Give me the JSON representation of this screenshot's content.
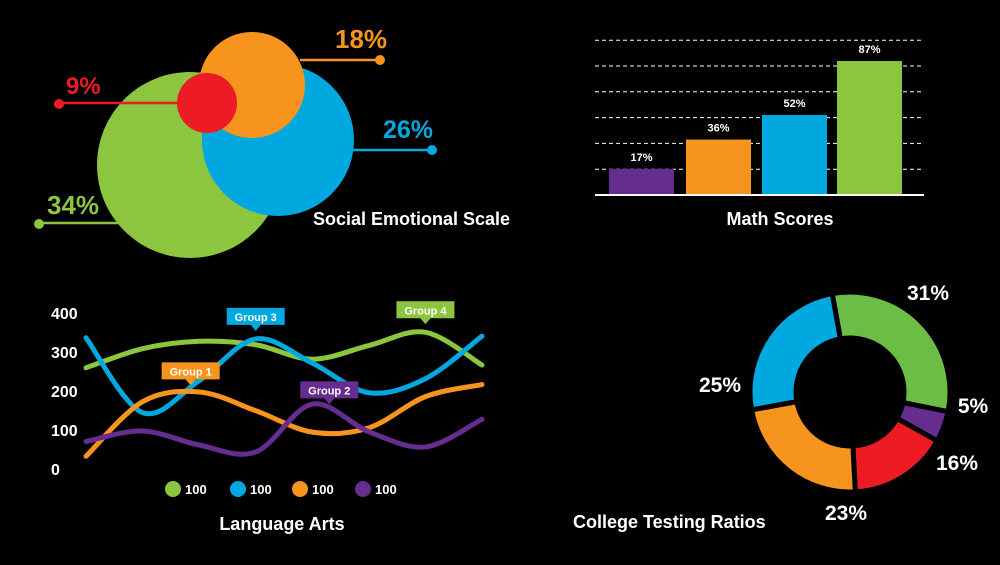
{
  "colors": {
    "green": "#8cc63f",
    "blue": "#00a8e0",
    "orange": "#f7941d",
    "red": "#ed1c24",
    "purple": "#662d91",
    "donut_green": "#6cbd45",
    "white": "#ffffff",
    "background": "#000000"
  },
  "chart_data": [
    {
      "type": "bubble",
      "title": "Social Emotional Scale",
      "series": [
        {
          "label": "34%",
          "value": 34,
          "color": "#8cc63f"
        },
        {
          "label": "26%",
          "value": 26,
          "color": "#00a8e0"
        },
        {
          "label": "18%",
          "value": 18,
          "color": "#f7941d"
        },
        {
          "label": "9%",
          "value": 9,
          "color": "#ed1c24"
        }
      ]
    },
    {
      "type": "bar",
      "title": "Math Scores",
      "values": [
        17,
        36,
        52,
        87
      ],
      "labels": [
        "17%",
        "36%",
        "52%",
        "87%"
      ],
      "colors": [
        "#662d91",
        "#f7941d",
        "#00a8e0",
        "#8cc63f"
      ],
      "ylim": [
        0,
        100
      ],
      "grid": true
    },
    {
      "type": "line",
      "title": "Language Arts",
      "yticks": [
        "400",
        "300",
        "200",
        "100",
        "0"
      ],
      "ylim": [
        0,
        400
      ],
      "series": [
        {
          "name": "Group 4",
          "color": "#8cc63f",
          "x": [
            0,
            1,
            2,
            3,
            4,
            5,
            6,
            7
          ],
          "values": [
            257,
            306,
            325,
            316,
            279,
            314,
            348,
            264
          ]
        },
        {
          "name": "Group 3",
          "color": "#00a8e0",
          "x": [
            0,
            1,
            2,
            3,
            4,
            5,
            6,
            7
          ],
          "values": [
            334,
            142,
            224,
            331,
            269,
            193,
            229,
            338
          ]
        },
        {
          "name": "Group 1",
          "color": "#f7941d",
          "x": [
            0,
            1,
            2,
            3,
            4,
            5,
            6,
            7
          ],
          "values": [
            30,
            170,
            195,
            147,
            92,
            103,
            183,
            214
          ]
        },
        {
          "name": "Group 2",
          "color": "#662d91",
          "x": [
            0,
            1,
            2,
            3,
            4,
            5,
            6,
            7
          ],
          "values": [
            68,
            95,
            59,
            41,
            164,
            93,
            54,
            125
          ]
        }
      ],
      "callouts": [
        {
          "label": "Group 3",
          "series": "Group 3",
          "x": 3
        },
        {
          "label": "Group 4",
          "series": "Group 4",
          "x": 6
        },
        {
          "label": "Group 1",
          "series": "Group 1",
          "x": 1.85
        },
        {
          "label": "Group 2",
          "series": "Group 2",
          "x": 4.3
        }
      ],
      "legend": [
        {
          "text": "100",
          "color": "#8cc63f"
        },
        {
          "text": "100",
          "color": "#00a8e0"
        },
        {
          "text": "100",
          "color": "#f7941d"
        },
        {
          "text": "100",
          "color": "#662d91"
        }
      ]
    },
    {
      "type": "pie",
      "donut": true,
      "title": "College Testing Ratios",
      "slices": [
        {
          "label": "31%",
          "value": 31,
          "color": "#6cbd45"
        },
        {
          "label": "5%",
          "value": 5,
          "color": "#662d91"
        },
        {
          "label": "16%",
          "value": 16,
          "color": "#ed1c24"
        },
        {
          "label": "23%",
          "value": 23,
          "color": "#f7941d"
        },
        {
          "label": "25%",
          "value": 25,
          "color": "#00a8e0"
        }
      ]
    }
  ]
}
